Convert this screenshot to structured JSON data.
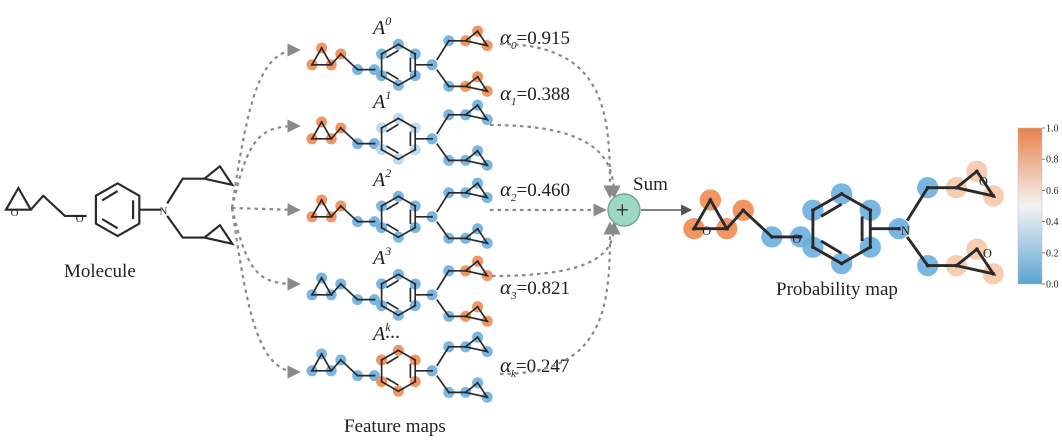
{
  "labels": {
    "molecule": "Molecule",
    "feature_maps": "Feature maps",
    "probability_map": "Probability map",
    "sum": "Sum",
    "plus": "+",
    "ellipsis": "...",
    "atom_o": "O",
    "atom_n": "N"
  },
  "feature_maps": [
    {
      "letter": "A",
      "sup": "0",
      "alpha_sym": "α",
      "alpha_sub": "0",
      "alpha_val": "=0.915"
    },
    {
      "letter": "A",
      "sup": "1",
      "alpha_sym": "α",
      "alpha_sub": "1",
      "alpha_val": "=0.388"
    },
    {
      "letter": "A",
      "sup": "2",
      "alpha_sym": "α",
      "alpha_sub": "2",
      "alpha_val": "=0.460"
    },
    {
      "letter": "A",
      "sup": "3",
      "alpha_sym": "α",
      "alpha_sub": "3",
      "alpha_val": "=0.821"
    },
    {
      "letter": "A",
      "sup": "k",
      "alpha_sym": "α",
      "alpha_sub": "k",
      "alpha_val": "=0.247"
    }
  ],
  "colorbar": {
    "ticks": [
      "1.0",
      "0.8",
      "0.6",
      "0.4",
      "0.2",
      "0.0"
    ],
    "colors": {
      "high": "#e8824a",
      "mid": "#f3f3f3",
      "low": "#5aa4d6"
    }
  },
  "colors": {
    "orange": "#ef8a52",
    "blue": "#6aaede",
    "pale_orange": "#f6c7a8",
    "pale_blue": "#b7d6ef",
    "sum_node": "#9fd8c0",
    "arrow": "#8a8a8a"
  },
  "feature_map_highlights": [
    {
      "o": 0.9,
      "b": 0.1,
      "r": 0.1,
      "n": 0.1,
      "t": 0.9
    },
    {
      "o": 0.8,
      "b": 0.15,
      "r": 0.5,
      "n": 0.15,
      "t": 0.1
    },
    {
      "o": 0.9,
      "b": 0.2,
      "r": 0.2,
      "n": 0.15,
      "t": 0.1
    },
    {
      "o": 0.1,
      "b": 0.1,
      "r": 0.15,
      "n": 0.15,
      "t": 0.95
    },
    {
      "o": 0.1,
      "b": 0.1,
      "r": 0.9,
      "n": 0.1,
      "t": 0.15
    }
  ],
  "probability_highlights": {
    "o": 0.92,
    "b": 0.35,
    "r": 0.25,
    "n": 0.25,
    "t": 0.65
  }
}
